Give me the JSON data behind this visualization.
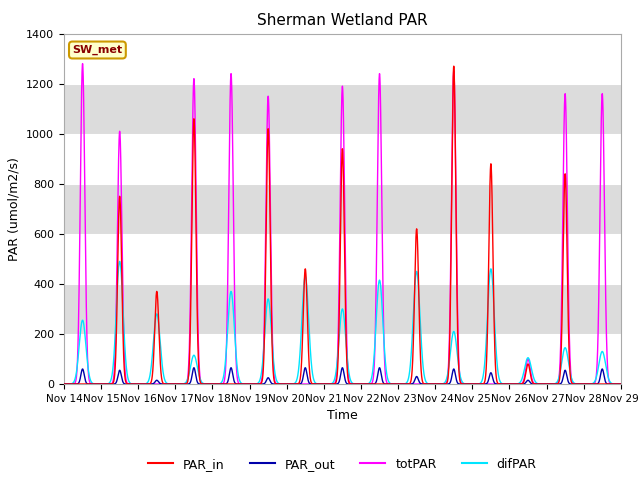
{
  "title": "Sherman Wetland PAR",
  "xlabel": "Time",
  "ylabel": "PAR (umol/m2/s)",
  "ylim": [
    0,
    1400
  ],
  "xlim": [
    0,
    15
  ],
  "background_color": "#ffffff",
  "plot_bg_color": "#e8e8e8",
  "band_colors": [
    "#ffffff",
    "#dcdcdc"
  ],
  "grid_color": "#ffffff",
  "label_box_text": "SW_met",
  "label_box_facecolor": "#ffffcc",
  "label_box_edgecolor": "#cc9900",
  "label_box_textcolor": "#880000",
  "series": {
    "PAR_in": {
      "color": "#ff0000",
      "lw": 1.0
    },
    "PAR_out": {
      "color": "#0000aa",
      "lw": 1.0
    },
    "totPAR": {
      "color": "#ff00ff",
      "lw": 1.0
    },
    "difPAR": {
      "color": "#00e5ff",
      "lw": 1.0
    }
  },
  "tick_labels": [
    "Nov 14",
    "Nov 15",
    "Nov 16",
    "Nov 17",
    "Nov 18",
    "Nov 19",
    "Nov 20",
    "Nov 21",
    "Nov 22",
    "Nov 23",
    "Nov 24",
    "Nov 25",
    "Nov 26",
    "Nov 27",
    "Nov 28",
    "Nov 29"
  ],
  "yticks": [
    0,
    200,
    400,
    600,
    800,
    1000,
    1200,
    1400
  ],
  "n_days": 15,
  "pts_per_day": 576,
  "tot_peaks": [
    1280,
    1010,
    0,
    1220,
    1240,
    1150,
    0,
    1190,
    1240,
    0,
    1250,
    0,
    100,
    1160,
    1160
  ],
  "par_in_peaks": [
    0,
    750,
    370,
    1060,
    0,
    1020,
    460,
    940,
    0,
    620,
    1270,
    880,
    80,
    840,
    0
  ],
  "par_out_peaks": [
    60,
    55,
    15,
    65,
    65,
    25,
    65,
    65,
    65,
    30,
    60,
    45,
    15,
    55,
    60
  ],
  "dif_peaks": [
    255,
    490,
    280,
    115,
    370,
    340,
    430,
    300,
    415,
    450,
    210,
    460,
    105,
    145,
    130
  ],
  "tot_hw": 0.06,
  "par_in_hw": 0.055,
  "par_out_hw": 0.045,
  "dif_hw": 0.09
}
